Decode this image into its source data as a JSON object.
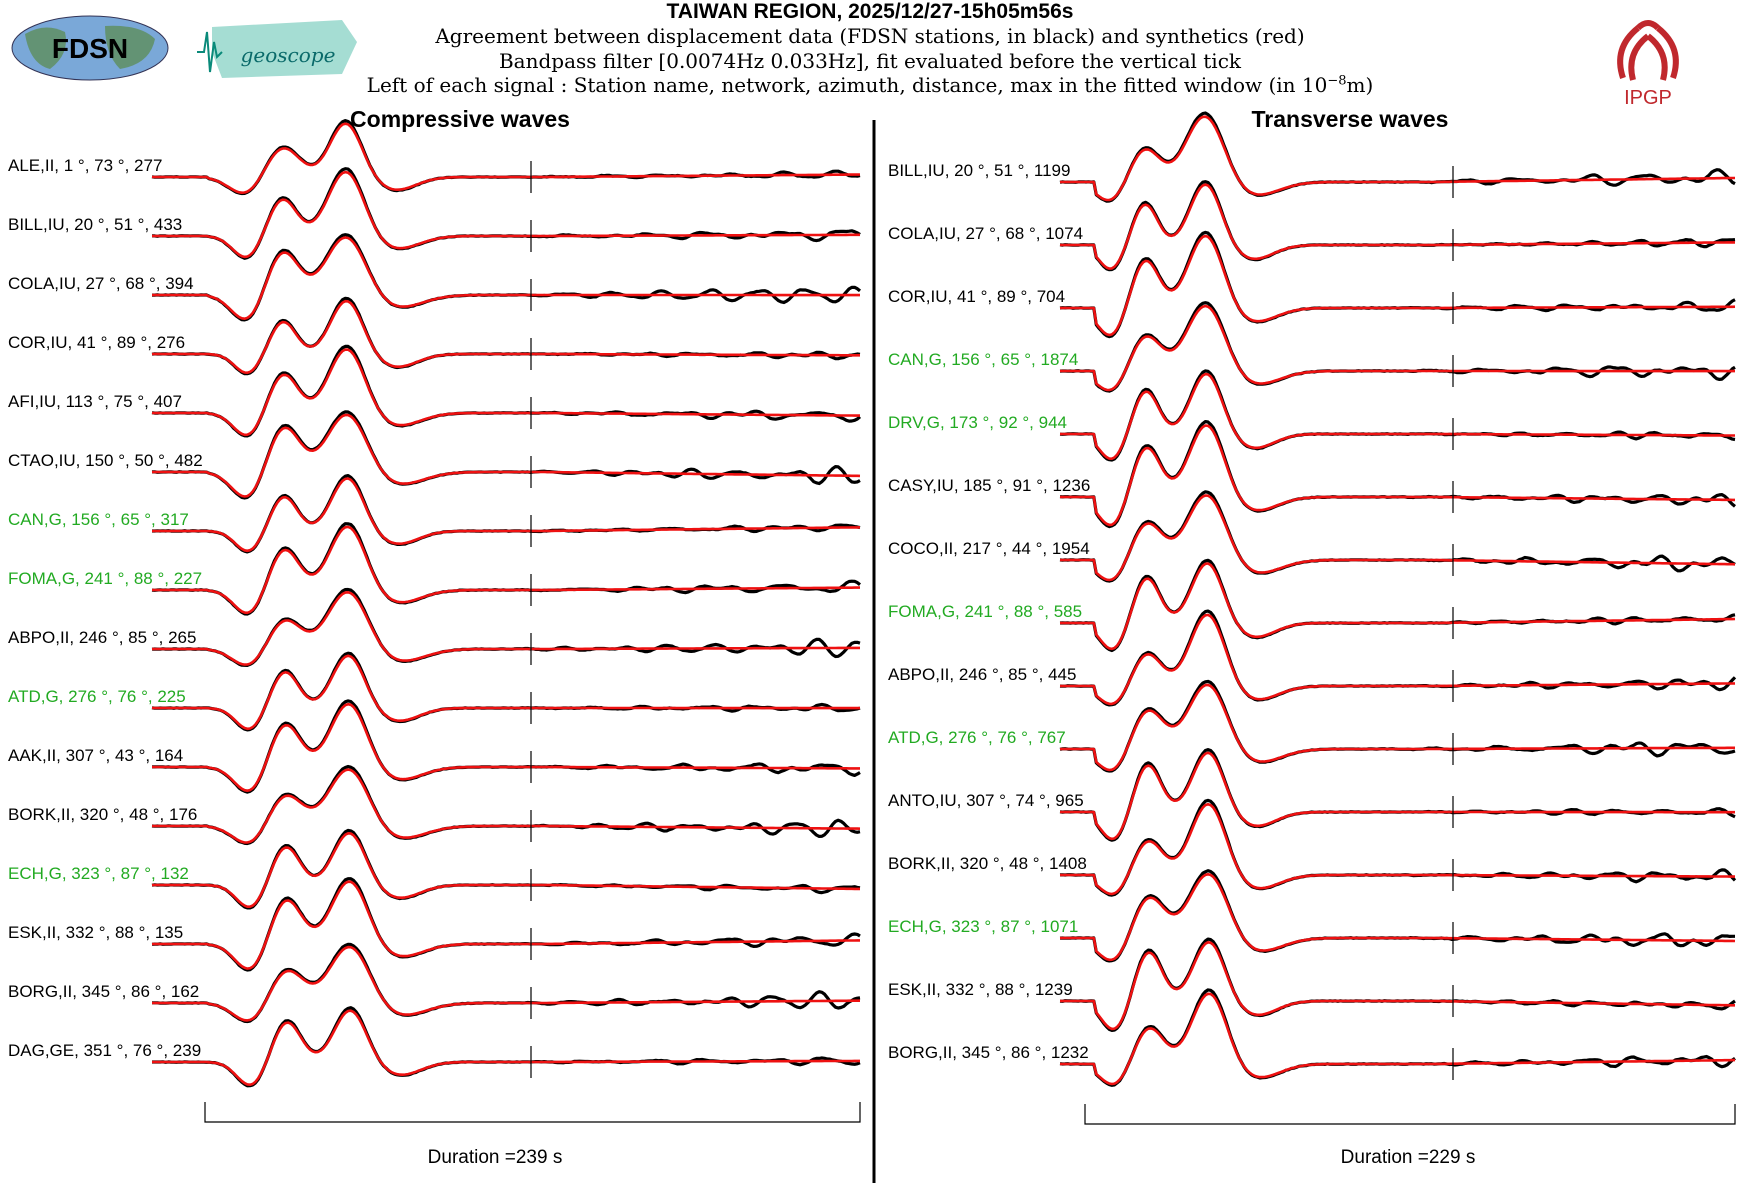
{
  "header": {
    "title": "TAIWAN REGION, 2025/12/27-15h05m56s",
    "line1": "Agreement between displacement data (FDSN stations, in black) and synthetics (red)",
    "line2": "Bandpass filter [0.0074Hz 0.033Hz], fit evaluated before the vertical tick",
    "line3_prefix": "Left of each signal : Station name, network, azimuth, distance, max in the fitted window (in 10",
    "line3_exp": "−8",
    "line3_suffix": "m)"
  },
  "logos": {
    "fdsn": "FDSN",
    "geoscope": "geoscope",
    "ipgp": "IPGP"
  },
  "colors": {
    "data": "#000000",
    "synthetic": "#ee1111",
    "geoscope_station": "#22aa22",
    "other_station": "#000000"
  },
  "chart_data": [
    {
      "type": "line",
      "title": "Compressive waves",
      "duration_label": "Duration =239 s",
      "duration_s": 239,
      "series_legend": [
        "data (black)",
        "synthetics (red)"
      ],
      "stations": [
        {
          "name": "ALE",
          "net": "II",
          "az": "1",
          "dist": "73",
          "max": "277",
          "geoscope": false
        },
        {
          "name": "BILL",
          "net": "IU",
          "az": "20",
          "dist": "51",
          "max": "433",
          "geoscope": false
        },
        {
          "name": "COLA",
          "net": "IU",
          "az": "27",
          "dist": "68",
          "max": "394",
          "geoscope": false
        },
        {
          "name": "COR",
          "net": "IU",
          "az": "41",
          "dist": "89",
          "max": "276",
          "geoscope": false
        },
        {
          "name": "AFI",
          "net": "IU",
          "az": "113",
          "dist": "75",
          "max": "407",
          "geoscope": false
        },
        {
          "name": "CTAO",
          "net": "IU",
          "az": "150",
          "dist": "50",
          "max": "482",
          "geoscope": false
        },
        {
          "name": "CAN",
          "net": "G",
          "az": "156",
          "dist": "65",
          "max": "317",
          "geoscope": true
        },
        {
          "name": "FOMA",
          "net": "G",
          "az": "241",
          "dist": "88",
          "max": "227",
          "geoscope": true
        },
        {
          "name": "ABPO",
          "net": "II",
          "az": "246",
          "dist": "85",
          "max": "265",
          "geoscope": false
        },
        {
          "name": "ATD",
          "net": "G",
          "az": "276",
          "dist": "76",
          "max": "225",
          "geoscope": true
        },
        {
          "name": "AAK",
          "net": "II",
          "az": "307",
          "dist": "43",
          "max": "164",
          "geoscope": false
        },
        {
          "name": "BORK",
          "net": "II",
          "az": "320",
          "dist": "48",
          "max": "176",
          "geoscope": false
        },
        {
          "name": "ECH",
          "net": "G",
          "az": "323",
          "dist": "87",
          "max": "132",
          "geoscope": true
        },
        {
          "name": "ESK",
          "net": "II",
          "az": "332",
          "dist": "88",
          "max": "135",
          "geoscope": false
        },
        {
          "name": "BORG",
          "net": "II",
          "az": "345",
          "dist": "86",
          "max": "162",
          "geoscope": false
        },
        {
          "name": "DAG",
          "net": "GE",
          "az": "351",
          "dist": "76",
          "max": "239",
          "geoscope": false
        }
      ]
    },
    {
      "type": "line",
      "title": "Transverse waves",
      "duration_label": "Duration =229 s",
      "duration_s": 229,
      "series_legend": [
        "data (black)",
        "synthetics (red)"
      ],
      "stations": [
        {
          "name": "BILL",
          "net": "IU",
          "az": "20",
          "dist": "51",
          "max": "1199",
          "geoscope": false
        },
        {
          "name": "COLA",
          "net": "IU",
          "az": "27",
          "dist": "68",
          "max": "1074",
          "geoscope": false
        },
        {
          "name": "COR",
          "net": "IU",
          "az": "41",
          "dist": "89",
          "max": "704",
          "geoscope": false
        },
        {
          "name": "CAN",
          "net": "G",
          "az": "156",
          "dist": "65",
          "max": "1874",
          "geoscope": true
        },
        {
          "name": "DRV",
          "net": "G",
          "az": "173",
          "dist": "92",
          "max": "944",
          "geoscope": true
        },
        {
          "name": "CASY",
          "net": "IU",
          "az": "185",
          "dist": "91",
          "max": "1236",
          "geoscope": false
        },
        {
          "name": "COCO",
          "net": "II",
          "az": "217",
          "dist": "44",
          "max": "1954",
          "geoscope": false
        },
        {
          "name": "FOMA",
          "net": "G",
          "az": "241",
          "dist": "88",
          "max": "585",
          "geoscope": true
        },
        {
          "name": "ABPO",
          "net": "II",
          "az": "246",
          "dist": "85",
          "max": "445",
          "geoscope": false
        },
        {
          "name": "ATD",
          "net": "G",
          "az": "276",
          "dist": "76",
          "max": "767",
          "geoscope": true
        },
        {
          "name": "ANTO",
          "net": "IU",
          "az": "307",
          "dist": "74",
          "max": "965",
          "geoscope": false
        },
        {
          "name": "BORK",
          "net": "II",
          "az": "320",
          "dist": "48",
          "max": "1408",
          "geoscope": false
        },
        {
          "name": "ECH",
          "net": "G",
          "az": "323",
          "dist": "87",
          "max": "1071",
          "geoscope": true
        },
        {
          "name": "ESK",
          "net": "II",
          "az": "332",
          "dist": "88",
          "max": "1239",
          "geoscope": false
        },
        {
          "name": "BORG",
          "net": "II",
          "az": "345",
          "dist": "86",
          "max": "1232",
          "geoscope": false
        }
      ]
    }
  ]
}
